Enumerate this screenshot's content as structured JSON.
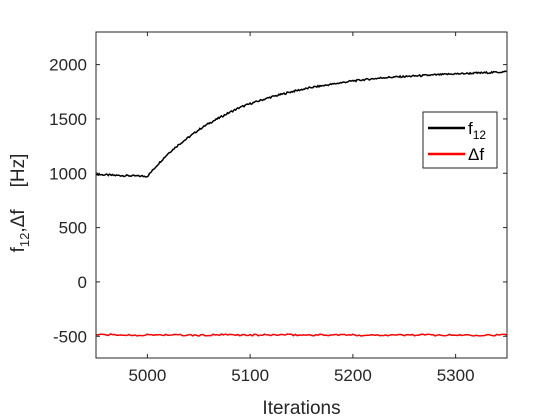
{
  "chart_data": {
    "type": "line",
    "xlabel": "Iterations",
    "ylabel": "f12,Δf [Hz]",
    "ylabel_parts": {
      "f": "f",
      "sub": "12",
      "rest": ",Δf",
      "units": "[Hz]"
    },
    "xlim": [
      4950,
      5350
    ],
    "ylim": [
      -700,
      2300
    ],
    "xticks": [
      5000,
      5100,
      5200,
      5300
    ],
    "yticks": [
      -500,
      0,
      500,
      1000,
      1500,
      2000
    ],
    "grid": false,
    "legend_position": "right",
    "series": [
      {
        "name": "f12",
        "name_parts": {
          "base": "f",
          "sub": "12"
        },
        "color": "#000000",
        "x": [
          4950,
          4960,
          4970,
          4980,
          4990,
          5000,
          5010,
          5020,
          5030,
          5040,
          5050,
          5060,
          5070,
          5080,
          5090,
          5100,
          5110,
          5120,
          5130,
          5140,
          5150,
          5160,
          5170,
          5180,
          5190,
          5200,
          5210,
          5220,
          5230,
          5240,
          5250,
          5260,
          5270,
          5280,
          5290,
          5300,
          5310,
          5320,
          5330,
          5340,
          5350
        ],
        "y": [
          990,
          985,
          980,
          978,
          975,
          972,
          1080,
          1180,
          1260,
          1330,
          1400,
          1460,
          1510,
          1560,
          1605,
          1640,
          1670,
          1700,
          1725,
          1750,
          1770,
          1790,
          1805,
          1820,
          1835,
          1850,
          1860,
          1870,
          1880,
          1885,
          1890,
          1895,
          1900,
          1905,
          1910,
          1915,
          1918,
          1922,
          1925,
          1930,
          1935
        ]
      },
      {
        "name": "Δf",
        "name_parts": {
          "base": "Δf",
          "sub": ""
        },
        "color": "#ff0000",
        "x": [
          4950,
          4970,
          4990,
          5010,
          5030,
          5050,
          5070,
          5090,
          5110,
          5130,
          5150,
          5170,
          5190,
          5210,
          5230,
          5250,
          5270,
          5290,
          5310,
          5330,
          5350
        ],
        "y": [
          -485,
          -488,
          -490,
          -486,
          -489,
          -492,
          -487,
          -488,
          -490,
          -486,
          -489,
          -488,
          -487,
          -490,
          -488,
          -489,
          -487,
          -490,
          -488,
          -489,
          -488
        ]
      }
    ]
  }
}
